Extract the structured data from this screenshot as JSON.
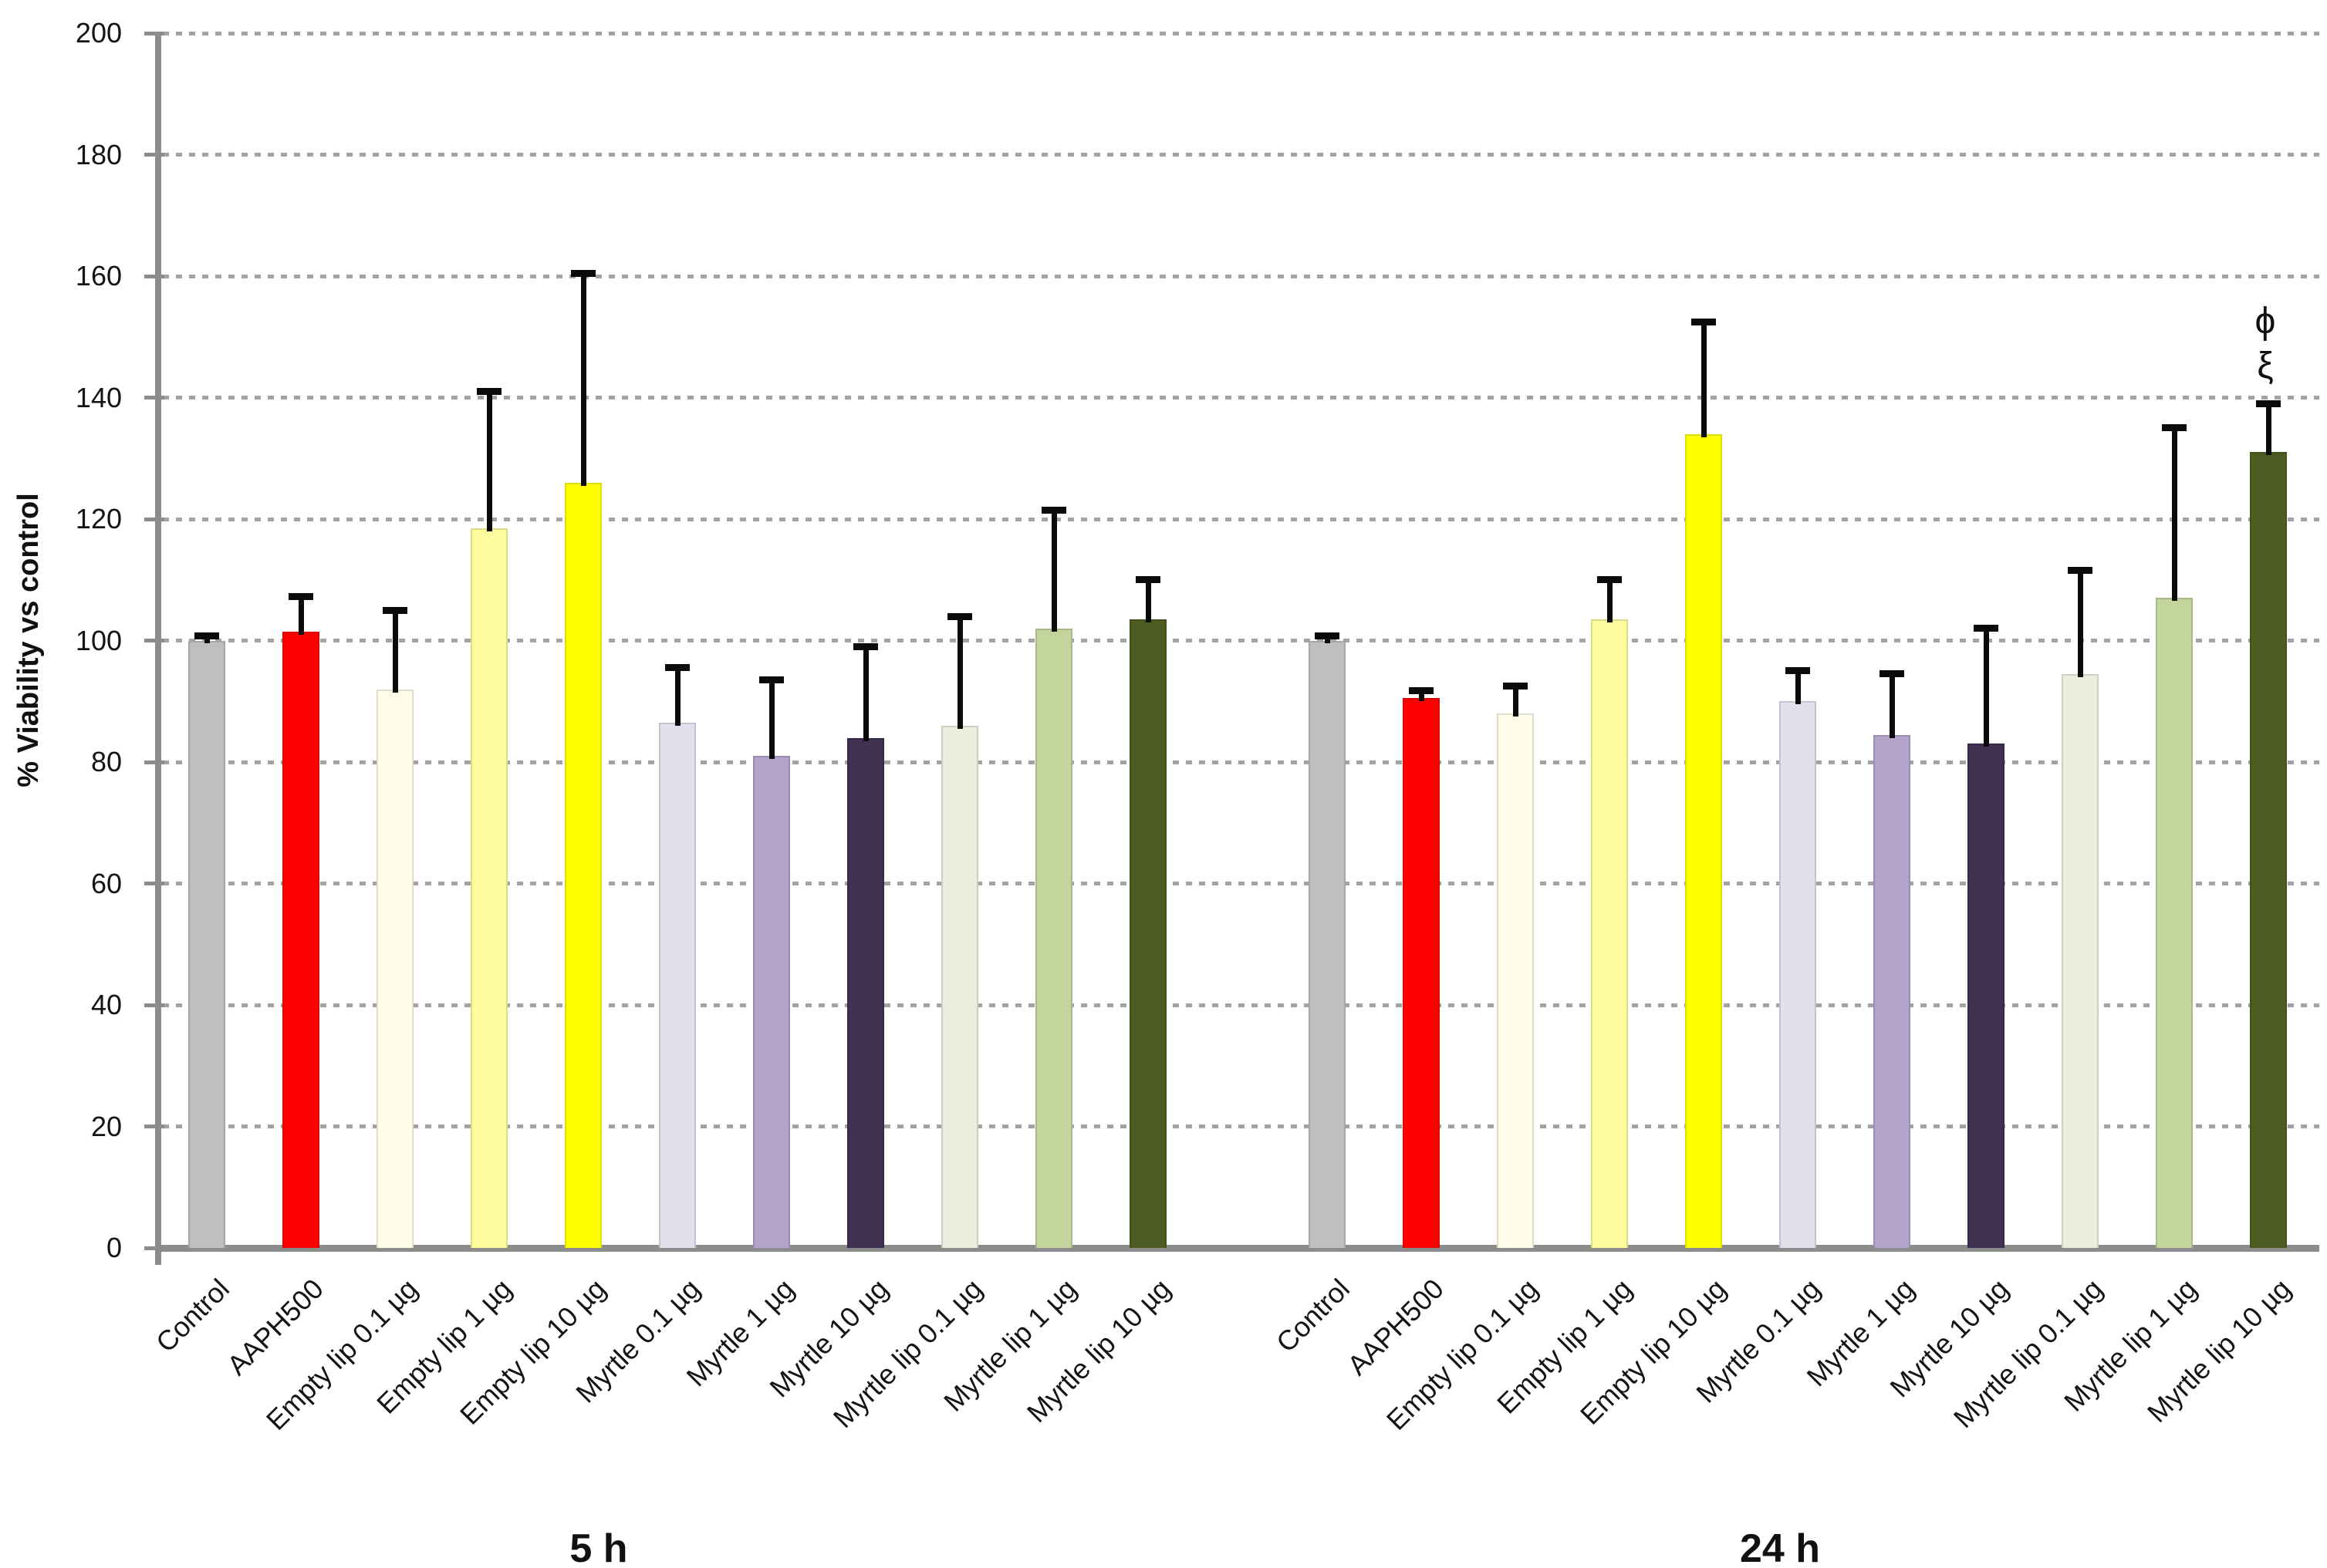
{
  "chart_data": {
    "type": "bar",
    "title": "",
    "xlabel": "",
    "ylabel": "% Viability vs control",
    "ylim": [
      0,
      200
    ],
    "ytick_step": 20,
    "grid": "horizontal-dotted",
    "legend_position": "none",
    "group_labels": [
      "5 h",
      "24 h"
    ],
    "categories": [
      "Control",
      "AAPH500",
      "Empty lip 0.1 µg",
      "Empty lip 1 µg",
      "Empty lip 10 µg",
      "Myrtle 0.1 µg",
      "Myrtle 1 µg",
      "Myrtle 10 µg",
      "Myrtle lip 0.1 µg",
      "Myrtle lip 1 µg",
      "Myrtle lip 10 µg"
    ],
    "bar_colors": [
      "#BFBFBF",
      "#FF0000",
      "#FFFDE8",
      "#FDFD9D",
      "#FFFF00",
      "#E4DFEC",
      "#B3A2C9",
      "#413152",
      "#EAEFDD",
      "#C3D49C",
      "#4D5D21"
    ],
    "series": [
      {
        "name": "5 h",
        "values": [
          100,
          101.5,
          92,
          118.5,
          126,
          86.5,
          81,
          84,
          86,
          102,
          103.5
        ],
        "errors_up": [
          0.8,
          5.8,
          13,
          22.5,
          34.5,
          9,
          12.5,
          15,
          18,
          19.5,
          6.5
        ]
      },
      {
        "name": "24 h",
        "values": [
          100,
          90.5,
          88,
          103.5,
          134,
          90,
          84.5,
          83,
          94.5,
          107,
          131
        ],
        "errors_up": [
          0.8,
          1.3,
          4.5,
          6.5,
          18.5,
          5,
          10,
          19,
          17,
          28,
          8
        ]
      }
    ],
    "annotations": [
      {
        "text": "ϕ",
        "position": "above 24 h Myrtle lip 10 µg bar"
      },
      {
        "text": "ξ",
        "position": "above 24 h Myrtle lip 10 µg bar"
      }
    ]
  },
  "y_axis": {
    "tick_labels": [
      "0",
      "20",
      "40",
      "60",
      "80",
      "100",
      "120",
      "140",
      "160",
      "180",
      "200"
    ]
  },
  "labels": {
    "y_title": "% Viability vs control",
    "group_5h": "5 h",
    "group_24h": "24 h",
    "annotation_line1": "ϕ",
    "annotation_line2": "ξ"
  }
}
